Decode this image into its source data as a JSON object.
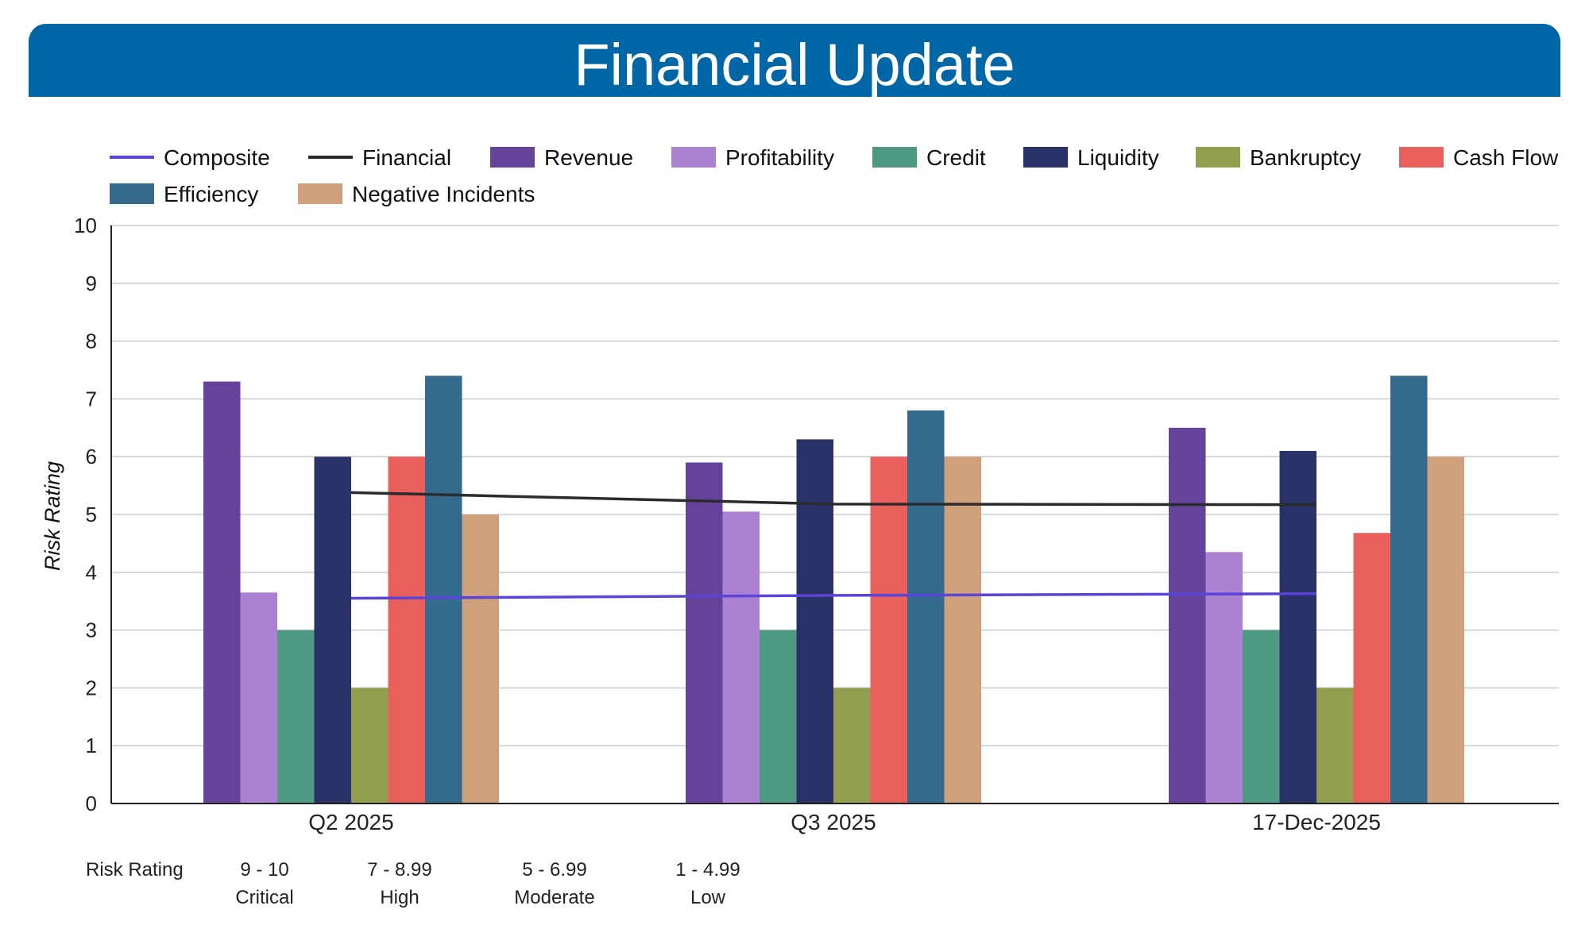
{
  "page": {
    "title": "Financial Update"
  },
  "chart_data": {
    "type": "bar",
    "categories": [
      "Q2 2025",
      "Q3 2025",
      "17-Dec-2025"
    ],
    "ylabel": "Risk Rating",
    "xlabel": "",
    "ylim": [
      0,
      10
    ],
    "yticks": [
      "0",
      "1",
      "2",
      "3",
      "4",
      "5",
      "6",
      "7",
      "8",
      "9",
      "10"
    ],
    "grid": true,
    "legend_position": "top",
    "series": [
      {
        "name": "Revenue",
        "kind": "bar",
        "color": "#66439b",
        "values": [
          7.3,
          5.9,
          6.5
        ]
      },
      {
        "name": "Profitability",
        "kind": "bar",
        "color": "#ab82d1",
        "values": [
          3.65,
          5.05,
          4.35
        ]
      },
      {
        "name": "Credit",
        "kind": "bar",
        "color": "#4f9985",
        "values": [
          3,
          3,
          3
        ]
      },
      {
        "name": "Liquidity",
        "kind": "bar",
        "color": "#283266",
        "values": [
          6,
          6.3,
          6.1
        ]
      },
      {
        "name": "Bankruptcy",
        "kind": "bar",
        "color": "#939f4e",
        "values": [
          2,
          2,
          2
        ]
      },
      {
        "name": "Cash Flow",
        "kind": "bar",
        "color": "#e85f5c",
        "values": [
          6,
          6,
          4.68
        ]
      },
      {
        "name": "Efficiency",
        "kind": "bar",
        "color": "#336a8e",
        "values": [
          7.4,
          6.8,
          7.4
        ]
      },
      {
        "name": "Negative Incidents",
        "kind": "bar",
        "color": "#d0a07d",
        "values": [
          5,
          6,
          6
        ]
      },
      {
        "name": "Composite",
        "kind": "line",
        "color": "#5b44d8",
        "values": [
          3.55,
          3.6,
          3.63
        ]
      },
      {
        "name": "Financial",
        "kind": "line",
        "color": "#2b2b2e",
        "values": [
          5.38,
          5.18,
          5.17
        ]
      }
    ],
    "legend_order": [
      "Composite",
      "Financial",
      "Revenue",
      "Profitability",
      "Credit",
      "Liquidity",
      "Bankruptcy",
      "Cash Flow",
      "Efficiency",
      "Negative Incidents"
    ]
  },
  "risk_scale": {
    "label": "Risk Rating",
    "bands": [
      {
        "range": "9 - 10",
        "name": "Critical"
      },
      {
        "range": "7 - 8.99",
        "name": "High"
      },
      {
        "range": "5 - 6.99",
        "name": "Moderate"
      },
      {
        "range": "1 - 4.99",
        "name": "Low"
      }
    ]
  }
}
